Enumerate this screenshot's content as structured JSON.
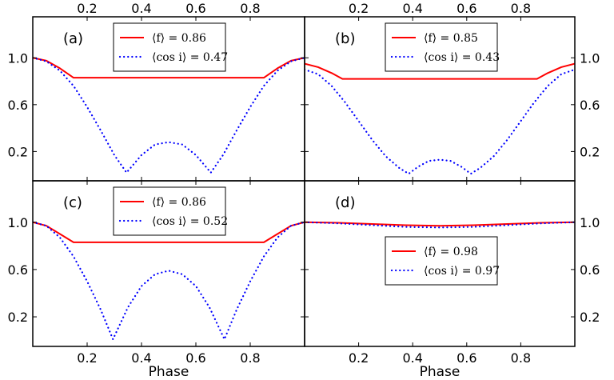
{
  "figure": {
    "x_axis_label": "Phase",
    "x_ticks": [
      "0.2",
      "0.4",
      "0.6",
      "0.8"
    ],
    "y_ticks": [
      "1.0",
      "0.6",
      "0.2"
    ]
  },
  "colors": {
    "f_line": "#ff0000",
    "cosi_line": "#0000ff",
    "frame": "#000000"
  },
  "chart_data": [
    {
      "type": "line",
      "panel": "(a)",
      "xlim": [
        0.0,
        1.0
      ],
      "ylim": [
        -0.05,
        1.35
      ],
      "x_ticks": [
        0.2,
        0.4,
        0.6,
        0.8
      ],
      "y_ticks": [
        1.0,
        0.6,
        0.2
      ],
      "legend": {
        "position": "top-center",
        "f_label": "⟨f⟩ = 0.86",
        "cosi_label": "⟨cos i⟩ = 0.47"
      },
      "series": [
        {
          "name": "f",
          "style": "solid",
          "x": [
            0.0,
            0.05,
            0.1,
            0.15,
            0.85,
            0.9,
            0.95,
            1.0
          ],
          "y": [
            1.0,
            0.975,
            0.91,
            0.83,
            0.83,
            0.91,
            0.975,
            1.0
          ]
        },
        {
          "name": "cos i",
          "style": "dotted",
          "x": [
            0.0,
            0.05,
            0.1,
            0.15,
            0.2,
            0.25,
            0.3,
            0.345,
            0.4,
            0.45,
            0.5,
            0.55,
            0.6,
            0.655,
            0.7,
            0.75,
            0.8,
            0.85,
            0.9,
            0.95,
            1.0
          ],
          "y": [
            1.0,
            0.97,
            0.89,
            0.76,
            0.58,
            0.38,
            0.17,
            0.02,
            0.17,
            0.26,
            0.28,
            0.26,
            0.17,
            0.02,
            0.17,
            0.38,
            0.58,
            0.76,
            0.89,
            0.97,
            1.0
          ]
        }
      ]
    },
    {
      "type": "line",
      "panel": "(b)",
      "xlim": [
        0.0,
        1.0
      ],
      "ylim": [
        -0.05,
        1.35
      ],
      "x_ticks": [
        0.2,
        0.4,
        0.6,
        0.8
      ],
      "y_ticks": [
        1.0,
        0.6,
        0.2
      ],
      "legend": {
        "position": "top-center",
        "f_label": "⟨f⟩ = 0.85",
        "cosi_label": "⟨cos i⟩ = 0.43"
      },
      "series": [
        {
          "name": "f",
          "style": "solid",
          "x": [
            0.0,
            0.05,
            0.1,
            0.14,
            0.86,
            0.9,
            0.95,
            1.0
          ],
          "y": [
            0.95,
            0.92,
            0.87,
            0.82,
            0.82,
            0.87,
            0.92,
            0.95
          ]
        },
        {
          "name": "cos i",
          "style": "dotted",
          "x": [
            0.0,
            0.05,
            0.1,
            0.15,
            0.2,
            0.25,
            0.3,
            0.35,
            0.385,
            0.42,
            0.46,
            0.5,
            0.54,
            0.58,
            0.615,
            0.65,
            0.7,
            0.75,
            0.8,
            0.85,
            0.9,
            0.95,
            1.0
          ],
          "y": [
            0.9,
            0.86,
            0.76,
            0.62,
            0.46,
            0.3,
            0.16,
            0.06,
            0.01,
            0.07,
            0.12,
            0.13,
            0.12,
            0.07,
            0.01,
            0.06,
            0.16,
            0.3,
            0.46,
            0.62,
            0.76,
            0.86,
            0.9
          ]
        }
      ]
    },
    {
      "type": "line",
      "panel": "(c)",
      "xlim": [
        0.0,
        1.0
      ],
      "ylim": [
        -0.05,
        1.35
      ],
      "x_ticks": [
        0.2,
        0.4,
        0.6,
        0.8
      ],
      "y_ticks": [
        1.0,
        0.6,
        0.2
      ],
      "legend": {
        "position": "top-center",
        "f_label": "⟨f⟩ = 0.86",
        "cosi_label": "⟨cos i⟩ = 0.52"
      },
      "series": [
        {
          "name": "f",
          "style": "solid",
          "x": [
            0.0,
            0.05,
            0.1,
            0.15,
            0.85,
            0.9,
            0.95,
            1.0
          ],
          "y": [
            1.0,
            0.97,
            0.9,
            0.83,
            0.83,
            0.9,
            0.97,
            1.0
          ]
        },
        {
          "name": "cos i",
          "style": "dotted",
          "x": [
            0.0,
            0.05,
            0.1,
            0.15,
            0.2,
            0.25,
            0.295,
            0.35,
            0.4,
            0.45,
            0.5,
            0.55,
            0.6,
            0.65,
            0.705,
            0.75,
            0.8,
            0.85,
            0.9,
            0.95,
            1.0
          ],
          "y": [
            1.0,
            0.97,
            0.87,
            0.71,
            0.5,
            0.26,
            0.01,
            0.28,
            0.46,
            0.56,
            0.59,
            0.56,
            0.46,
            0.28,
            0.01,
            0.26,
            0.5,
            0.71,
            0.87,
            0.97,
            1.0
          ]
        }
      ]
    },
    {
      "type": "line",
      "panel": "(d)",
      "xlim": [
        0.0,
        1.0
      ],
      "ylim": [
        -0.05,
        1.35
      ],
      "x_ticks": [
        0.2,
        0.4,
        0.6,
        0.8
      ],
      "y_ticks": [
        1.0,
        0.6,
        0.2
      ],
      "legend": {
        "position": "center",
        "f_label": "⟨f⟩ = 0.98",
        "cosi_label": "⟨cos i⟩ = 0.97"
      },
      "series": [
        {
          "name": "f",
          "style": "solid",
          "x": [
            0.0,
            0.125,
            0.25,
            0.375,
            0.5,
            0.625,
            0.75,
            0.875,
            1.0
          ],
          "y": [
            1.0,
            0.995,
            0.985,
            0.975,
            0.97,
            0.975,
            0.985,
            0.995,
            1.0
          ]
        },
        {
          "name": "cos i",
          "style": "dotted",
          "x": [
            0.0,
            0.125,
            0.25,
            0.375,
            0.5,
            0.625,
            0.75,
            0.875,
            1.0
          ],
          "y": [
            1.0,
            0.99,
            0.975,
            0.96,
            0.955,
            0.96,
            0.975,
            0.99,
            1.0
          ]
        }
      ]
    }
  ]
}
